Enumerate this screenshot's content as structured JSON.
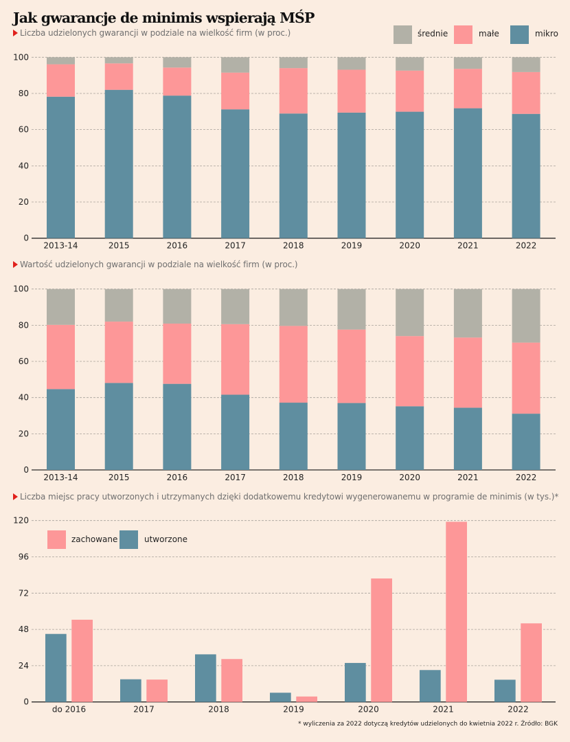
{
  "title": "Jak gwarancje de minimis wspierają MŚP",
  "colors": {
    "background": "#fbede1",
    "srednie": "#b2b1a7",
    "male": "#fd9798",
    "mikro": "#5f8ea0",
    "zachowane": "#fd9798",
    "utworzone": "#5f8ea0",
    "accent_triangle": "#e0201b"
  },
  "legend_top": [
    {
      "label": "średnie",
      "color": "#b2b1a7"
    },
    {
      "label": "małe",
      "color": "#fd9798"
    },
    {
      "label": "mikro",
      "color": "#5f8ea0"
    }
  ],
  "legend_bottom": [
    {
      "label": "zachowane",
      "color": "#fd9798"
    },
    {
      "label": "utworzone",
      "color": "#5f8ea0"
    }
  ],
  "footnote": "* wyliczenia za 2022 dotyczą kredytów udzielonych do kwietnia 2022 r. Źródło: BGK",
  "chart_data": [
    {
      "type": "bar",
      "stacked": true,
      "title": "Liczba udzielonych gwarancji w podziale na wielkość firm (w proc.)",
      "xlabel": "",
      "ylabel": "",
      "categories": [
        "2013-14",
        "2015",
        "2016",
        "2017",
        "2018",
        "2019",
        "2020",
        "2021",
        "2022"
      ],
      "series": [
        {
          "name": "mikro",
          "color": "#5f8ea0",
          "values": [
            78.2,
            82.0,
            78.8,
            71.2,
            68.9,
            69.4,
            69.9,
            71.8,
            68.7
          ]
        },
        {
          "name": "małe",
          "color": "#fd9798",
          "values": [
            17.9,
            14.6,
            15.5,
            20.3,
            25.1,
            23.7,
            22.7,
            21.8,
            23.1
          ]
        },
        {
          "name": "średnie",
          "color": "#b2b1a7",
          "values": [
            3.9,
            3.4,
            5.7,
            8.5,
            6.0,
            6.9,
            7.4,
            6.4,
            8.2
          ]
        }
      ],
      "ylim": [
        0,
        100
      ],
      "yticks": [
        "0",
        "20",
        "40",
        "60",
        "80",
        "100"
      ],
      "grid": true,
      "legend": "top-right"
    },
    {
      "type": "bar",
      "stacked": true,
      "title": "Wartość udzielonych gwarancji w podziale na wielkość firm (w proc.)",
      "xlabel": "",
      "ylabel": "",
      "categories": [
        "2013-14",
        "2015",
        "2016",
        "2017",
        "2018",
        "2019",
        "2020",
        "2021",
        "2022"
      ],
      "series": [
        {
          "name": "mikro",
          "color": "#5f8ea0",
          "values": [
            44.7,
            48.1,
            47.6,
            41.6,
            37.2,
            37.0,
            35.2,
            34.4,
            31.1
          ]
        },
        {
          "name": "małe",
          "color": "#fd9798",
          "values": [
            35.5,
            33.9,
            33.3,
            39.0,
            42.4,
            40.6,
            38.8,
            38.8,
            39.3
          ]
        },
        {
          "name": "średnie",
          "color": "#b2b1a7",
          "values": [
            19.8,
            18.0,
            19.1,
            19.4,
            20.4,
            22.4,
            26.0,
            26.8,
            29.6
          ]
        }
      ],
      "ylim": [
        0,
        100
      ],
      "yticks": [
        "0",
        "20",
        "40",
        "60",
        "80",
        "100"
      ],
      "grid": true,
      "legend": "top-right"
    },
    {
      "type": "bar",
      "stacked": false,
      "title": "Liczba miejsc pracy utworzonych i utrzymanych dzięki dodatkowemu kredytowi wygenerowanemu w programie de minimis (w tys.)*",
      "xlabel": "",
      "ylabel": "",
      "categories": [
        "do 2016",
        "2017",
        "2018",
        "2019",
        "2020",
        "2021",
        "2022"
      ],
      "series": [
        {
          "name": "utworzone",
          "color": "#5f8ea0",
          "values": [
            45.0,
            15.0,
            31.5,
            6.1,
            25.8,
            21.1,
            14.7
          ]
        },
        {
          "name": "zachowane",
          "color": "#fd9798",
          "values": [
            54.4,
            14.8,
            28.4,
            3.6,
            81.7,
            119.2,
            52.0
          ]
        }
      ],
      "ylim": [
        0,
        120
      ],
      "yticks": [
        "0",
        "24",
        "48",
        "72",
        "96",
        "120"
      ],
      "grid": true,
      "legend": "top-left"
    }
  ]
}
